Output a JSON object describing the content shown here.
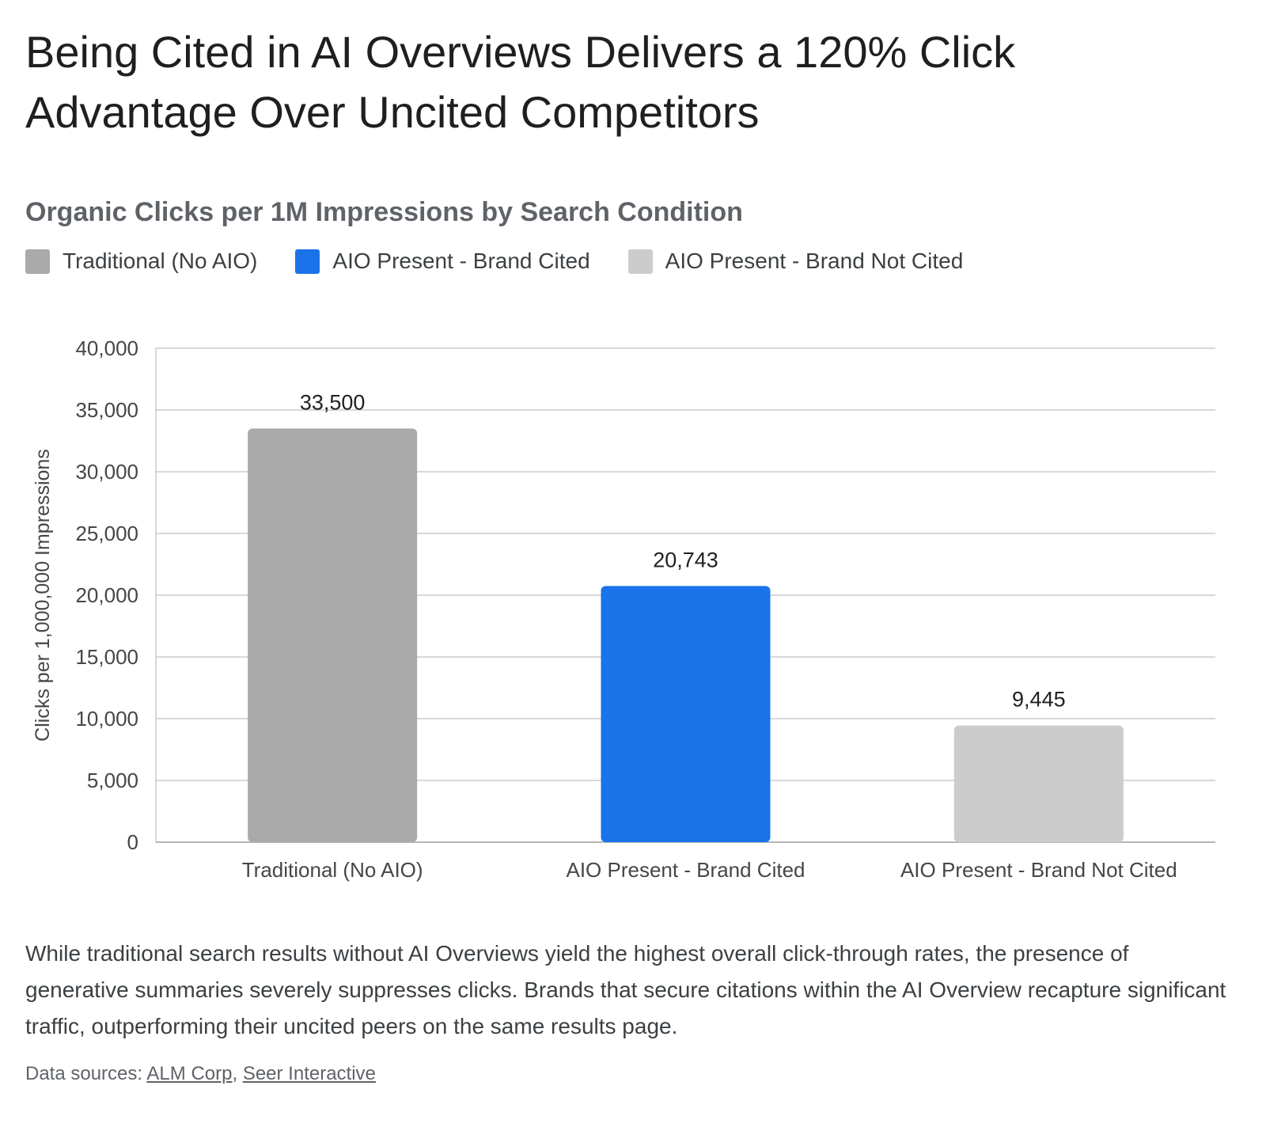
{
  "page": {
    "title": "Being Cited in AI Overviews Delivers a 120% Click Advantage Over Uncited Competitors",
    "description": "While traditional search results without AI Overviews yield the highest overall click-through rates, the presence of generative summaries severely suppresses clicks. Brands that secure citations within the AI Overview recapture significant traffic, outperforming their uncited peers on the same results page.",
    "sources_label": "Data sources:",
    "sources": [
      {
        "label": "ALM Corp"
      },
      {
        "label": "Seer Interactive"
      }
    ],
    "sources_separator": ","
  },
  "chart_data": {
    "type": "bar",
    "title": "Organic Clicks per 1M Impressions by Search Condition",
    "ylabel": "Clicks per 1,000,000 Impressions",
    "xlabel": "",
    "categories": [
      "Traditional (No AIO)",
      "AIO Present - Brand Cited",
      "AIO Present - Brand Not Cited"
    ],
    "values": [
      33500,
      20743,
      9445
    ],
    "value_labels": [
      "33,500",
      "20,743",
      "9,445"
    ],
    "colors": [
      "#aaaaaa",
      "#1a73e8",
      "#cccccc"
    ],
    "ylim": [
      0,
      40000
    ],
    "yticks": [
      0,
      5000,
      10000,
      15000,
      20000,
      25000,
      30000,
      35000,
      40000
    ],
    "ytick_labels": [
      "0",
      "5,000",
      "10,000",
      "15,000",
      "20,000",
      "25,000",
      "30,000",
      "35,000",
      "40,000"
    ],
    "grid": true,
    "legend": {
      "placement": "top-left",
      "entries": [
        {
          "label": "Traditional (No AIO)",
          "color": "#aaaaaa"
        },
        {
          "label": "AIO Present - Brand Cited",
          "color": "#1a73e8"
        },
        {
          "label": "AIO Present - Brand Not Cited",
          "color": "#cccccc"
        }
      ]
    }
  }
}
